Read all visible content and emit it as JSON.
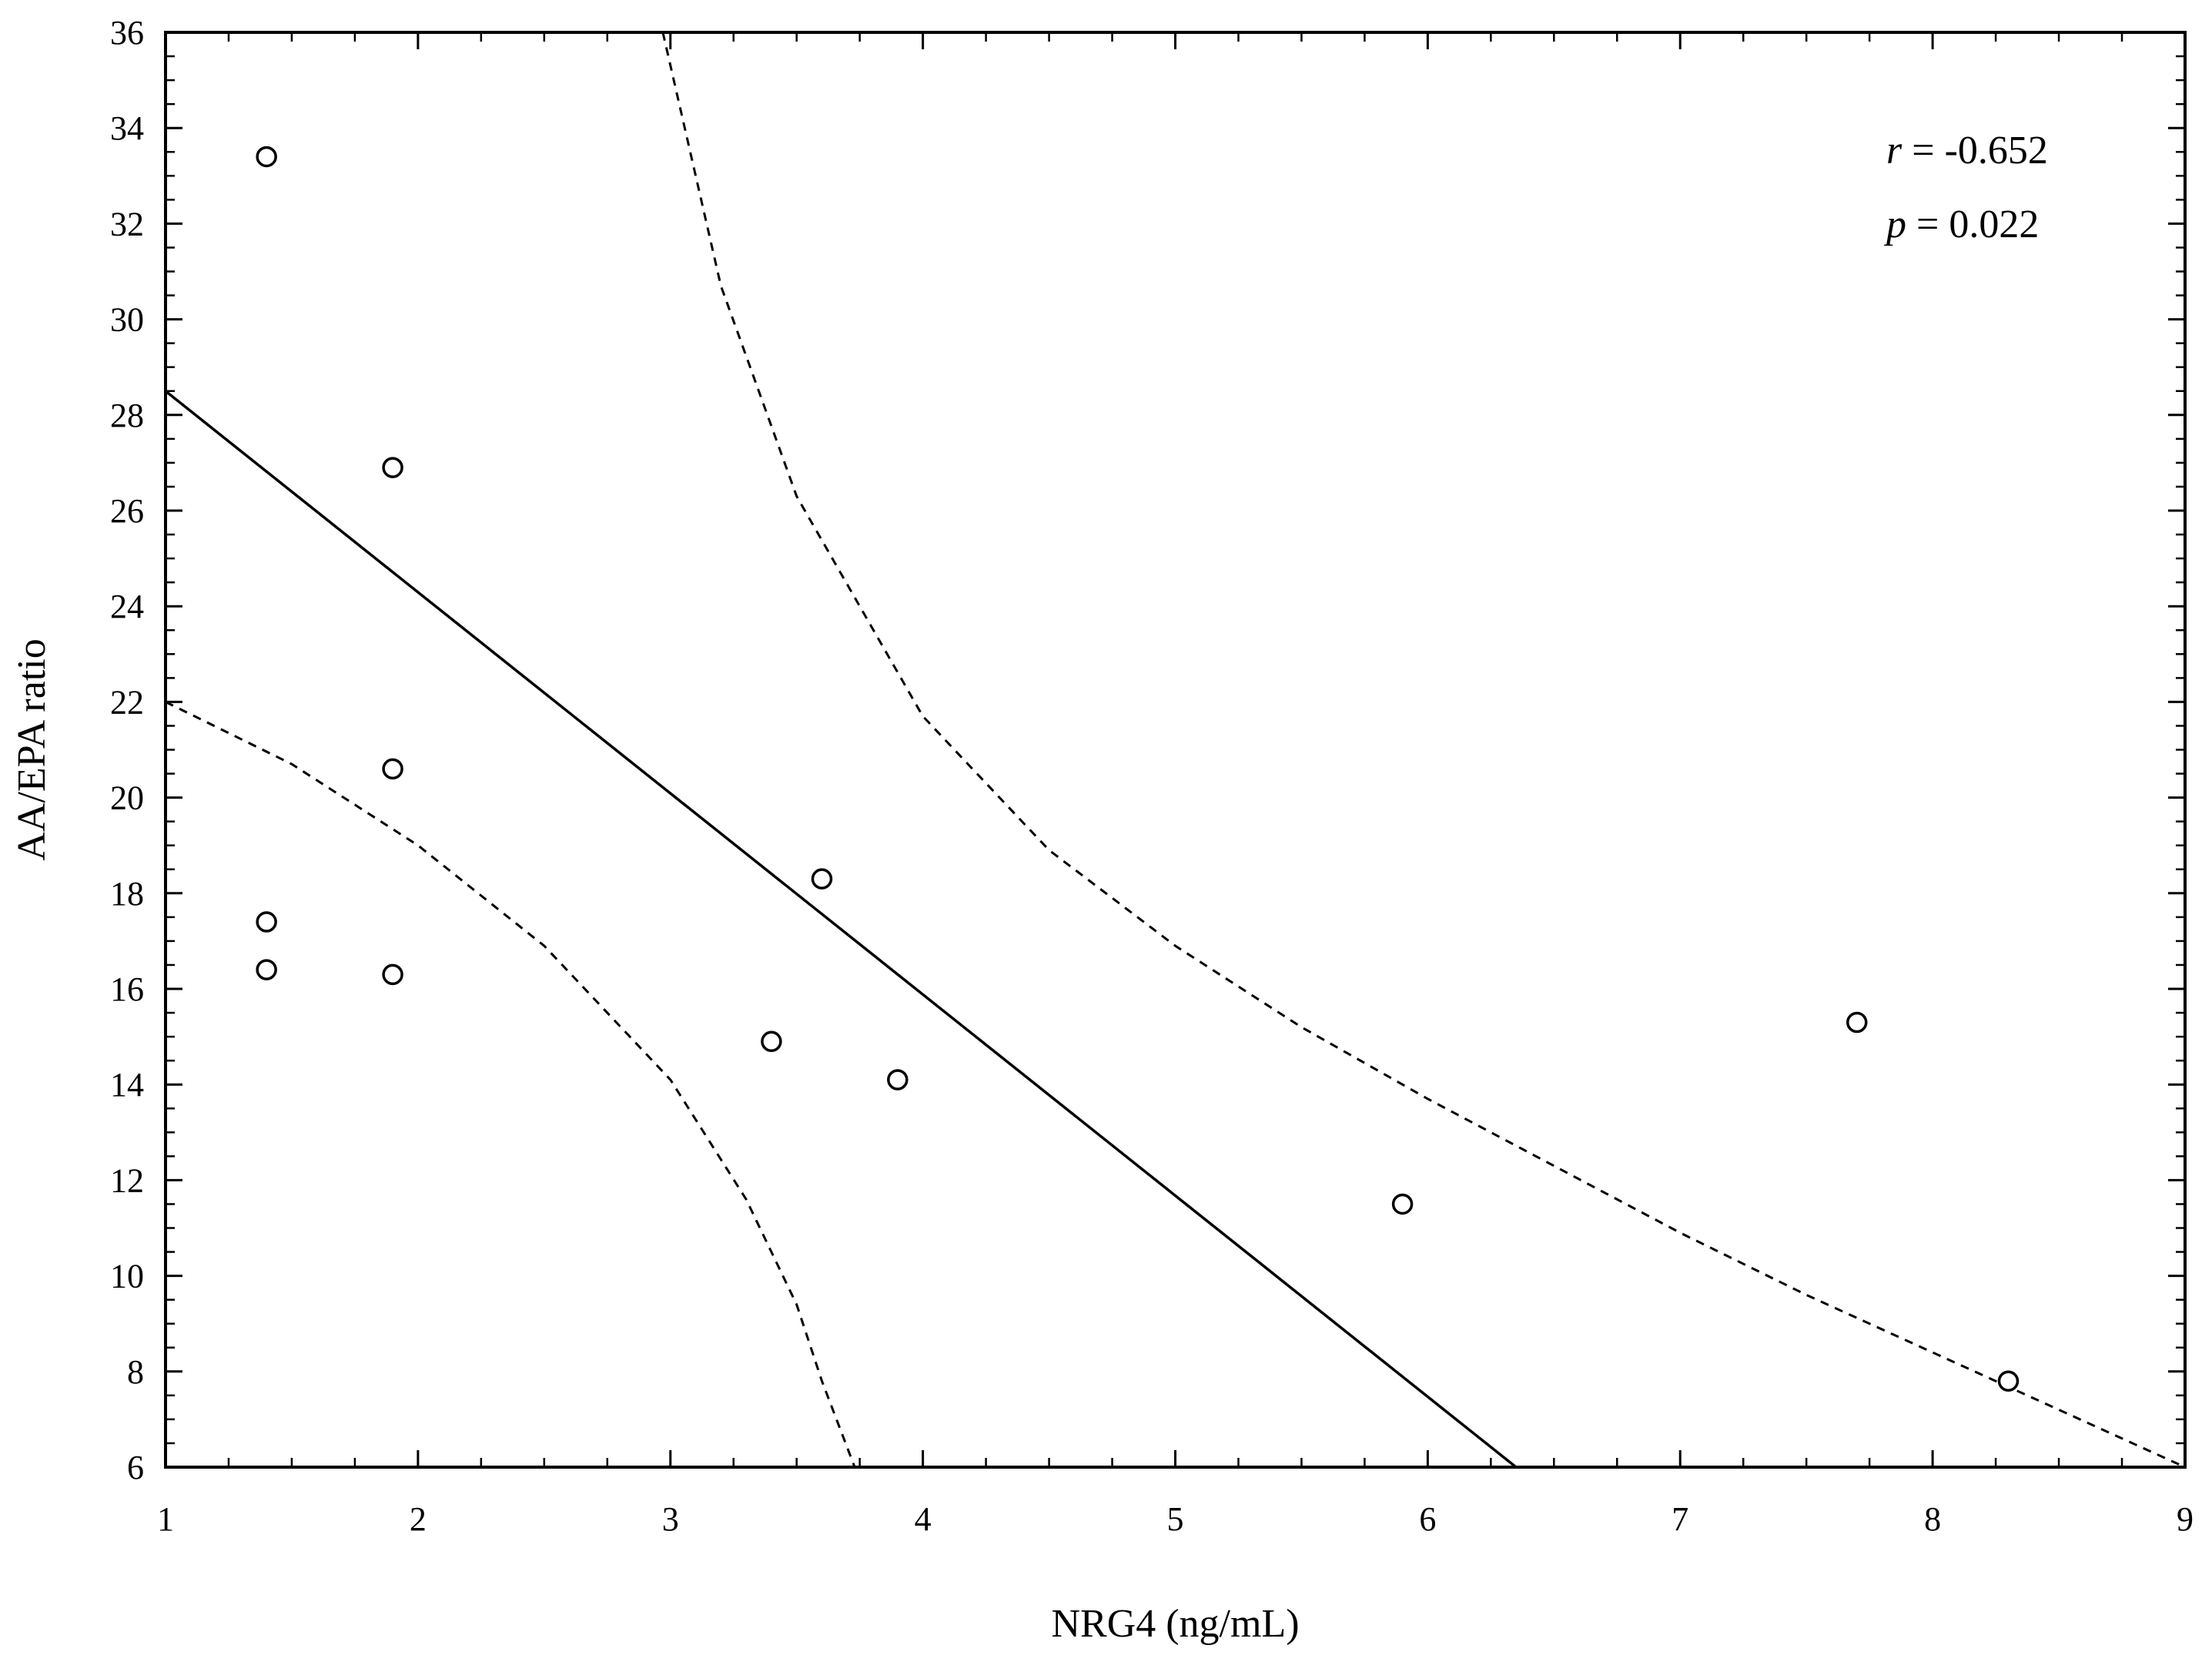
{
  "chart_data": {
    "type": "scatter",
    "title": "",
    "xlabel": "NRG4 (ng/mL)",
    "ylabel": "AA/EPA ratio",
    "xlim": [
      1,
      9
    ],
    "ylim": [
      6,
      36
    ],
    "xticks": [
      1,
      2,
      3,
      4,
      5,
      6,
      7,
      8,
      9
    ],
    "yticks": [
      6,
      8,
      10,
      12,
      14,
      16,
      18,
      20,
      22,
      24,
      26,
      28,
      30,
      32,
      34,
      36
    ],
    "grid": false,
    "points": [
      {
        "x": 1.4,
        "y": 33.4
      },
      {
        "x": 1.4,
        "y": 17.4
      },
      {
        "x": 1.4,
        "y": 16.4
      },
      {
        "x": 1.9,
        "y": 26.9
      },
      {
        "x": 1.9,
        "y": 20.6
      },
      {
        "x": 1.9,
        "y": 16.3
      },
      {
        "x": 3.4,
        "y": 14.9
      },
      {
        "x": 3.6,
        "y": 18.3
      },
      {
        "x": 3.9,
        "y": 14.1
      },
      {
        "x": 5.9,
        "y": 11.5
      },
      {
        "x": 7.7,
        "y": 15.3
      },
      {
        "x": 8.3,
        "y": 7.8
      }
    ],
    "regression_line": {
      "style": "solid",
      "x": [
        1.0,
        6.35
      ],
      "y": [
        28.5,
        6.0
      ]
    },
    "confidence_upper": {
      "style": "dashed",
      "x": [
        2.97,
        3.2,
        3.5,
        4.0,
        4.5,
        5.0,
        5.5,
        6.0,
        6.5,
        7.0,
        7.5,
        8.0,
        8.5,
        9.0
      ],
      "y": [
        36.0,
        30.7,
        26.3,
        21.7,
        18.9,
        16.9,
        15.2,
        13.7,
        12.3,
        10.9,
        9.6,
        8.4,
        7.2,
        6.0
      ]
    },
    "confidence_lower": {
      "style": "dashed",
      "x": [
        1.0,
        1.5,
        2.0,
        2.5,
        3.0,
        3.3,
        3.5,
        3.6,
        3.73
      ],
      "y": [
        22.0,
        20.7,
        19.0,
        16.9,
        14.1,
        11.6,
        9.4,
        7.8,
        6.0
      ]
    },
    "annotations": {
      "r_symbol": "r",
      "r_value": " = -0.652",
      "p_symbol": "p",
      "p_value": " = 0.022"
    }
  }
}
